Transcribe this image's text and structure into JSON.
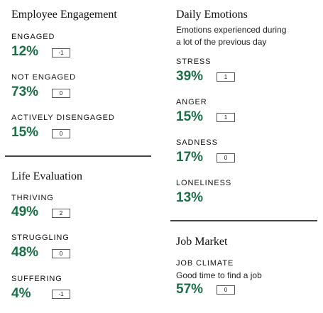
{
  "employee_engagement": {
    "title": "Employee Engagement",
    "items": [
      {
        "label": "ENGAGED",
        "value": "12%",
        "change": "-1"
      },
      {
        "label": "NOT ENGAGED",
        "value": "73%",
        "change": "0"
      },
      {
        "label": "ACTIVELY DISENGAGED",
        "value": "15%",
        "change": "0"
      }
    ]
  },
  "life_evaluation": {
    "title": "Life Evaluation",
    "items": [
      {
        "label": "THRIVING",
        "value": "49%",
        "change": "2"
      },
      {
        "label": "STRUGGLING",
        "value": "48%",
        "change": "0"
      },
      {
        "label": "SUFFERING",
        "value": "4%",
        "change": "-1"
      }
    ]
  },
  "daily_emotions": {
    "title": "Daily Emotions",
    "subtitle_line1": "Emotions experienced during",
    "subtitle_line2": "a lot of the previous day",
    "items": [
      {
        "label": "STRESS",
        "value": "39%",
        "change": "1"
      },
      {
        "label": "ANGER",
        "value": "15%",
        "change": "1"
      },
      {
        "label": "SADNESS",
        "value": "17%",
        "change": "0"
      },
      {
        "label": "LONELINESS",
        "value": "13%"
      }
    ]
  },
  "job_market": {
    "title": "Job Market",
    "label": "JOB CLIMATE",
    "subtitle": "Good time to find a job",
    "value": "57%",
    "change": "0"
  },
  "colors": {
    "value_green": "#1a7045",
    "divider": "#444444"
  }
}
